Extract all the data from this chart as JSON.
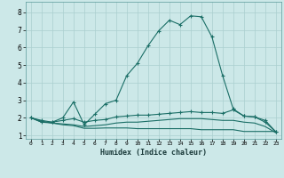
{
  "xlabel": "Humidex (Indice chaleur)",
  "bg_color": "#cce8e8",
  "grid_color": "#aacfcf",
  "line_color": "#1a6e66",
  "xlim": [
    -0.5,
    23.5
  ],
  "ylim": [
    0.8,
    8.6
  ],
  "xticks": [
    0,
    1,
    2,
    3,
    4,
    5,
    6,
    7,
    8,
    9,
    10,
    11,
    12,
    13,
    14,
    15,
    16,
    17,
    18,
    19,
    20,
    21,
    22,
    23
  ],
  "yticks": [
    1,
    2,
    3,
    4,
    5,
    6,
    7,
    8
  ],
  "line1_x": [
    0,
    1,
    2,
    3,
    4,
    5,
    6,
    7,
    8,
    9,
    10,
    11,
    12,
    13,
    14,
    15,
    16,
    17,
    18,
    19,
    20,
    21,
    22,
    23
  ],
  "line1_y": [
    2.0,
    1.75,
    1.75,
    2.0,
    2.9,
    1.6,
    2.2,
    2.8,
    3.0,
    4.4,
    5.1,
    6.1,
    6.95,
    7.55,
    7.3,
    7.8,
    7.75,
    6.6,
    4.4,
    2.5,
    2.1,
    2.05,
    1.85,
    1.2
  ],
  "line2_x": [
    0,
    1,
    2,
    3,
    4,
    5,
    6,
    7,
    8,
    9,
    10,
    11,
    12,
    13,
    14,
    15,
    16,
    17,
    18,
    19,
    20,
    21,
    22,
    23
  ],
  "line2_y": [
    2.0,
    1.85,
    1.75,
    1.85,
    1.95,
    1.75,
    1.85,
    1.9,
    2.05,
    2.1,
    2.15,
    2.15,
    2.2,
    2.25,
    2.3,
    2.35,
    2.3,
    2.3,
    2.25,
    2.45,
    2.1,
    2.05,
    1.75,
    1.2
  ],
  "line3_x": [
    0,
    1,
    2,
    3,
    4,
    5,
    6,
    7,
    8,
    9,
    10,
    11,
    12,
    13,
    14,
    15,
    16,
    17,
    18,
    19,
    20,
    21,
    22,
    23
  ],
  "line3_y": [
    2.0,
    1.8,
    1.7,
    1.65,
    1.6,
    1.5,
    1.55,
    1.6,
    1.7,
    1.75,
    1.75,
    1.8,
    1.85,
    1.9,
    1.95,
    1.95,
    1.95,
    1.9,
    1.85,
    1.85,
    1.75,
    1.7,
    1.5,
    1.15
  ],
  "line4_x": [
    0,
    1,
    2,
    3,
    4,
    5,
    6,
    7,
    8,
    9,
    10,
    11,
    12,
    13,
    14,
    15,
    16,
    17,
    18,
    19,
    20,
    21,
    22,
    23
  ],
  "line4_y": [
    2.0,
    1.75,
    1.7,
    1.6,
    1.55,
    1.4,
    1.4,
    1.42,
    1.42,
    1.42,
    1.38,
    1.38,
    1.38,
    1.38,
    1.38,
    1.38,
    1.32,
    1.32,
    1.32,
    1.32,
    1.22,
    1.22,
    1.22,
    1.22
  ]
}
